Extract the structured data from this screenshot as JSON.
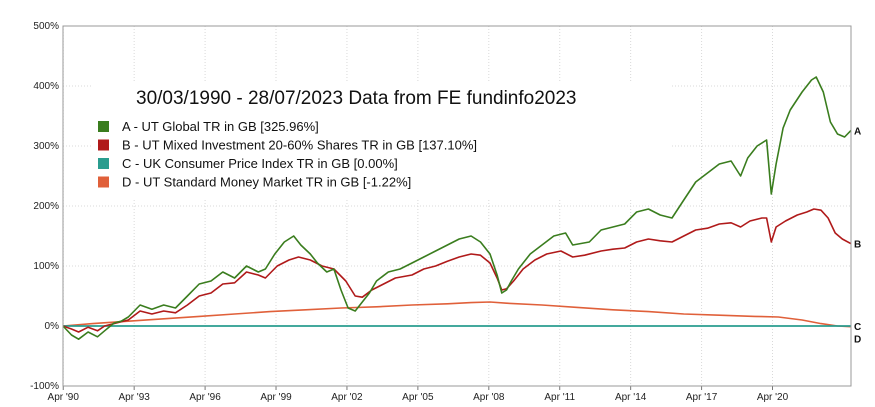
{
  "chart_data": {
    "type": "line",
    "title": "30/03/1990 - 28/07/2023 Data from FE fundinfo2023",
    "xlabel": "",
    "ylabel": "",
    "x_range": [
      1990.24,
      2023.57
    ],
    "ylim": [
      -100,
      500
    ],
    "y_ticks": [
      -100,
      0,
      100,
      200,
      300,
      400,
      500
    ],
    "y_tick_labels": [
      "-100%",
      "0%",
      "100%",
      "200%",
      "300%",
      "400%",
      "500%"
    ],
    "x_ticks": [
      1990.25,
      1993.25,
      1996.25,
      1999.25,
      2002.25,
      2005.25,
      2008.25,
      2011.25,
      2014.25,
      2017.25,
      2020.25
    ],
    "x_tick_labels": [
      "Apr '90",
      "Apr '93",
      "Apr '96",
      "Apr '99",
      "Apr '02",
      "Apr '05",
      "Apr '08",
      "Apr '11",
      "Apr '14",
      "Apr '17",
      "Apr '20"
    ],
    "grid": true,
    "legend_position": "top-left",
    "series": [
      {
        "name": "A - UT Global TR in GB [325.96%]",
        "end_label": "A",
        "color": "#3a7d1e",
        "x": [
          1990.24,
          1990.6,
          1990.9,
          1991.3,
          1991.7,
          1992.0,
          1992.4,
          1992.7,
          1993.0,
          1993.5,
          1994.0,
          1994.5,
          1995.0,
          1995.5,
          1996.0,
          1996.5,
          1997.0,
          1997.5,
          1998.0,
          1998.5,
          1998.8,
          1999.2,
          1999.6,
          2000.0,
          2000.3,
          2000.7,
          2001.0,
          2001.4,
          2001.7,
          2002.0,
          2002.3,
          2002.6,
          2002.9,
          2003.2,
          2003.5,
          2004.0,
          2004.5,
          2005.0,
          2005.5,
          2006.0,
          2006.5,
          2007.0,
          2007.5,
          2007.9,
          2008.3,
          2008.6,
          2008.8,
          2009.0,
          2009.2,
          2009.5,
          2010.0,
          2010.5,
          2011.0,
          2011.5,
          2011.8,
          2012.5,
          2013.0,
          2013.5,
          2014.0,
          2014.5,
          2015.0,
          2015.5,
          2016.0,
          2016.5,
          2017.0,
          2017.5,
          2018.0,
          2018.5,
          2018.9,
          2019.2,
          2019.6,
          2020.0,
          2020.2,
          2020.4,
          2020.7,
          2021.0,
          2021.5,
          2021.9,
          2022.1,
          2022.4,
          2022.7,
          2023.0,
          2023.3,
          2023.57
        ],
        "values": [
          0,
          -15,
          -22,
          -10,
          -18,
          -8,
          5,
          8,
          15,
          35,
          28,
          35,
          30,
          50,
          70,
          75,
          90,
          80,
          100,
          90,
          95,
          120,
          140,
          150,
          135,
          120,
          105,
          90,
          95,
          60,
          30,
          25,
          40,
          55,
          75,
          90,
          95,
          105,
          115,
          125,
          135,
          145,
          150,
          140,
          120,
          85,
          55,
          60,
          75,
          95,
          120,
          135,
          150,
          155,
          135,
          140,
          160,
          165,
          170,
          190,
          195,
          185,
          180,
          210,
          240,
          255,
          270,
          275,
          250,
          280,
          300,
          310,
          220,
          270,
          330,
          360,
          390,
          410,
          415,
          390,
          340,
          320,
          315,
          325.96
        ]
      },
      {
        "name": "B - UT Mixed Investment 20-60% Shares TR in GB [137.10%]",
        "end_label": "B",
        "color": "#b01a1a",
        "x": [
          1990.24,
          1990.6,
          1990.9,
          1991.3,
          1991.7,
          1992.0,
          1992.5,
          1993.0,
          1993.5,
          1994.0,
          1994.5,
          1995.0,
          1995.5,
          1996.0,
          1996.5,
          1997.0,
          1997.5,
          1998.0,
          1998.5,
          1998.8,
          1999.3,
          1999.8,
          2000.2,
          2000.7,
          2001.2,
          2001.7,
          2002.2,
          2002.6,
          2002.9,
          2003.3,
          2003.8,
          2004.3,
          2005.0,
          2005.5,
          2006.0,
          2006.5,
          2007.0,
          2007.5,
          2007.9,
          2008.3,
          2008.6,
          2008.8,
          2009.0,
          2009.3,
          2009.7,
          2010.2,
          2010.7,
          2011.3,
          2011.8,
          2012.3,
          2013.0,
          2013.5,
          2014.0,
          2014.5,
          2015.0,
          2015.5,
          2016.0,
          2016.5,
          2017.0,
          2017.5,
          2018.0,
          2018.5,
          2018.9,
          2019.3,
          2019.8,
          2020.0,
          2020.2,
          2020.4,
          2020.8,
          2021.3,
          2021.7,
          2022.0,
          2022.3,
          2022.6,
          2022.9,
          2023.2,
          2023.57
        ],
        "values": [
          0,
          -5,
          -10,
          -2,
          -8,
          0,
          5,
          10,
          25,
          20,
          25,
          22,
          35,
          50,
          55,
          70,
          72,
          90,
          85,
          80,
          100,
          110,
          115,
          110,
          100,
          95,
          75,
          50,
          48,
          60,
          70,
          80,
          85,
          95,
          100,
          108,
          115,
          120,
          118,
          105,
          80,
          60,
          62,
          75,
          95,
          110,
          120,
          125,
          115,
          118,
          125,
          128,
          130,
          140,
          145,
          142,
          140,
          150,
          160,
          163,
          170,
          172,
          165,
          175,
          180,
          180,
          140,
          165,
          175,
          185,
          190,
          195,
          193,
          180,
          155,
          145,
          137.1
        ]
      },
      {
        "name": "C - UK Consumer Price Index TR in GB [0.00%]",
        "end_label": "C",
        "color": "#2a9d8f",
        "x": [
          1990.24,
          2023.57
        ],
        "values": [
          0,
          0
        ]
      },
      {
        "name": "D - UT Standard Money Market TR in GB [-1.22%]",
        "end_label": "D",
        "color": "#e0603a",
        "x": [
          1990.24,
          1991.5,
          1993.0,
          1994.5,
          1996.0,
          1997.5,
          1999.0,
          2000.5,
          2002.0,
          2003.5,
          2005.0,
          2006.5,
          2007.5,
          2008.3,
          2009.0,
          2010.5,
          2012.0,
          2013.5,
          2015.0,
          2016.5,
          2018.0,
          2019.5,
          2020.5,
          2021.5,
          2022.3,
          2023.0,
          2023.57
        ],
        "values": [
          0,
          4,
          8,
          12,
          16,
          20,
          24,
          27,
          30,
          32,
          35,
          37,
          39,
          40,
          38,
          35,
          31,
          27,
          24,
          20,
          18,
          16,
          15,
          10,
          4,
          0,
          -1.22
        ]
      }
    ]
  }
}
